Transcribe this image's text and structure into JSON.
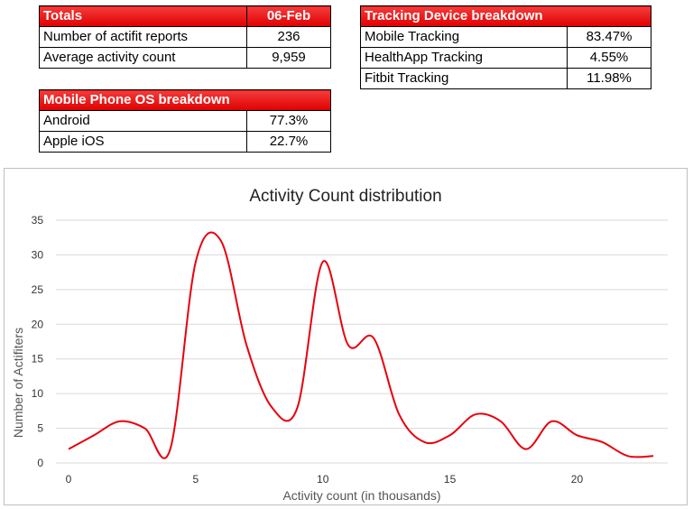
{
  "totals_table": {
    "header_label": "Totals",
    "header_date": "06-Feb",
    "rows": [
      {
        "label": "Number of actifit reports",
        "value": "236"
      },
      {
        "label": "Average activity count",
        "value": "9,959"
      }
    ]
  },
  "device_table": {
    "header_label": "Tracking Device breakdown",
    "rows": [
      {
        "label": "Mobile Tracking",
        "value": "83.47%"
      },
      {
        "label": "HealthApp Tracking",
        "value": "4.55%"
      },
      {
        "label": "Fitbit Tracking",
        "value": "11.98%"
      }
    ]
  },
  "os_table": {
    "header_label": "Mobile Phone OS breakdown",
    "rows": [
      {
        "label": "Android",
        "value": "77.3%"
      },
      {
        "label": "Apple iOS",
        "value": "22.7%"
      }
    ]
  },
  "colors": {
    "header_red": "#e00000",
    "series_line": "#e8000d",
    "gridline": "#d9d9d9"
  },
  "chart_data": {
    "type": "line",
    "title": "Activity Count distribution",
    "xlabel": "Activity count (in thousands)",
    "ylabel": "Number of Actifiters",
    "xlim": [
      0,
      23
    ],
    "ylim": [
      0,
      35
    ],
    "xticks": [
      "0",
      "5",
      "10",
      "15",
      "20"
    ],
    "yticks": [
      "0",
      "5",
      "10",
      "15",
      "20",
      "25",
      "30",
      "35"
    ],
    "grid": true,
    "smooth": true,
    "x": [
      0,
      1,
      2,
      3,
      4,
      5,
      6,
      7,
      8,
      9,
      10,
      11,
      12,
      13,
      14,
      15,
      16,
      17,
      18,
      19,
      20,
      21,
      22,
      23
    ],
    "series": [
      {
        "values": [
          2,
          4,
          6,
          5,
          2,
          29,
          32,
          17,
          8,
          8,
          29,
          17,
          18,
          7,
          3,
          4,
          7,
          6,
          2,
          6,
          4,
          3,
          1,
          1
        ]
      }
    ]
  }
}
